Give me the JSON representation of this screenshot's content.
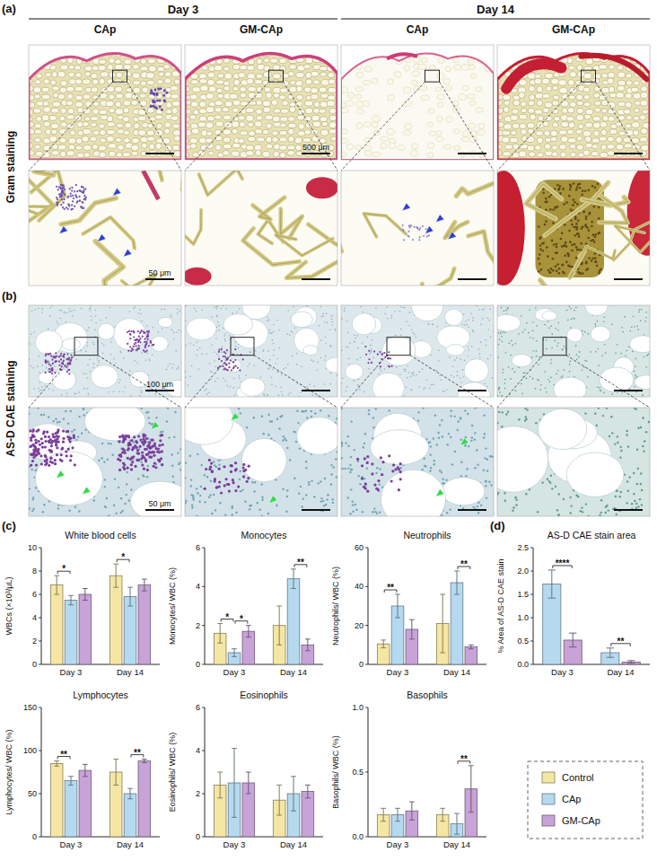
{
  "figure": {
    "panel_labels": [
      "(a)",
      "(b)",
      "(c)",
      "(d)"
    ],
    "days": [
      "Day 3",
      "Day 14"
    ],
    "groups": [
      "CAp",
      "GM-CAp"
    ],
    "rows": [
      "Gram staining",
      "AS-D CAE staining"
    ],
    "scale_bars": [
      "500 μm",
      "50 μm",
      "100 μm",
      "50 μm"
    ]
  },
  "chart_data": [
    {
      "type": "bar",
      "title": "White blood cells",
      "ylabel": "WBCs (×10³/μL)",
      "categories": [
        "Day 3",
        "Day 14"
      ],
      "series": [
        {
          "name": "Control",
          "color": "#f5e6a3",
          "values": [
            6.8,
            7.6
          ],
          "errors": [
            0.8,
            1.0
          ]
        },
        {
          "name": "CAp",
          "color": "#b5daf0",
          "values": [
            5.5,
            5.8
          ],
          "errors": [
            0.4,
            0.8
          ]
        },
        {
          "name": "GM-CAp",
          "color": "#c8a3d8",
          "values": [
            6.0,
            6.8
          ],
          "errors": [
            0.5,
            0.5
          ]
        }
      ],
      "ylim": [
        0,
        10
      ],
      "yticks": [
        0,
        2,
        4,
        6,
        8,
        10
      ],
      "annotations": [
        {
          "text": "*",
          "category": 0,
          "series": [
            0,
            1
          ]
        },
        {
          "text": "*",
          "category": 1,
          "series": [
            0,
            1
          ]
        }
      ]
    },
    {
      "type": "bar",
      "title": "Monocytes",
      "ylabel": "Monocytes/ WBC (%)",
      "categories": [
        "Day 3",
        "Day 14"
      ],
      "series": [
        {
          "name": "Control",
          "color": "#f5e6a3",
          "values": [
            1.6,
            2.0
          ],
          "errors": [
            0.5,
            1.0
          ]
        },
        {
          "name": "CAp",
          "color": "#b5daf0",
          "values": [
            0.6,
            4.4
          ],
          "errors": [
            0.2,
            0.5
          ]
        },
        {
          "name": "GM-CAp",
          "color": "#c8a3d8",
          "values": [
            1.7,
            1.0
          ],
          "errors": [
            0.3,
            0.3
          ]
        }
      ],
      "ylim": [
        0,
        6
      ],
      "yticks": [
        0,
        2,
        4,
        6
      ],
      "annotations": [
        {
          "text": "*",
          "category": 0,
          "series": [
            0,
            1
          ]
        },
        {
          "text": "*",
          "category": 0,
          "series": [
            1,
            2
          ]
        },
        {
          "text": "**",
          "category": 1,
          "series": [
            1,
            2
          ]
        }
      ]
    },
    {
      "type": "bar",
      "title": "Neutrophils",
      "ylabel": "Neutrophils/ WBC (%)",
      "categories": [
        "Day 3",
        "Day 14"
      ],
      "series": [
        {
          "name": "Control",
          "color": "#f5e6a3",
          "values": [
            10.5,
            21
          ],
          "errors": [
            2,
            15
          ]
        },
        {
          "name": "CAp",
          "color": "#b5daf0",
          "values": [
            30,
            42
          ],
          "errors": [
            6,
            6
          ]
        },
        {
          "name": "GM-CAp",
          "color": "#c8a3d8",
          "values": [
            18,
            9
          ],
          "errors": [
            5,
            1
          ]
        }
      ],
      "ylim": [
        0,
        60
      ],
      "yticks": [
        0,
        20,
        40,
        60
      ],
      "annotations": [
        {
          "text": "**",
          "category": 0,
          "series": [
            0,
            1
          ]
        },
        {
          "text": "**",
          "category": 1,
          "series": [
            1,
            2
          ]
        }
      ]
    },
    {
      "type": "bar",
      "title": "AS-D CAE stain area",
      "ylabel": "% Area of AS-D CAE stain",
      "categories": [
        "Day 3",
        "Day 14"
      ],
      "series": [
        {
          "name": "CAp",
          "color": "#b5daf0",
          "values": [
            1.72,
            0.25
          ],
          "errors": [
            0.3,
            0.1
          ]
        },
        {
          "name": "GM-CAp",
          "color": "#c8a3d8",
          "values": [
            0.52,
            0.05
          ],
          "errors": [
            0.15,
            0.03
          ]
        }
      ],
      "ylim": [
        0,
        2.5
      ],
      "yticks": [
        {
          "value": 0,
          "label": "0.0"
        },
        0.5,
        {
          "value": 1,
          "label": "1.0"
        },
        1.5,
        {
          "value": 2,
          "label": "2.0"
        },
        2.5
      ],
      "annotations": [
        {
          "text": "****",
          "category": 0,
          "series": [
            0,
            1
          ]
        },
        {
          "text": "**",
          "category": 1,
          "series": [
            0,
            1
          ]
        }
      ]
    },
    {
      "type": "bar",
      "title": "Lymphocytes",
      "ylabel": "Lymphocytes/ WBC (%)",
      "categories": [
        "Day 3",
        "Day 14"
      ],
      "series": [
        {
          "name": "Control",
          "color": "#f5e6a3",
          "values": [
            85,
            75
          ],
          "errors": [
            3,
            15
          ]
        },
        {
          "name": "CAp",
          "color": "#b5daf0",
          "values": [
            65,
            50
          ],
          "errors": [
            5,
            6
          ]
        },
        {
          "name": "GM-CAp",
          "color": "#c8a3d8",
          "values": [
            77,
            88
          ],
          "errors": [
            7,
            2
          ]
        }
      ],
      "ylim": [
        0,
        150
      ],
      "yticks": [
        0,
        50,
        100,
        150
      ],
      "annotations": [
        {
          "text": "**",
          "category": 0,
          "series": [
            0,
            1
          ]
        },
        {
          "text": "**",
          "category": 1,
          "series": [
            1,
            2
          ]
        }
      ]
    },
    {
      "type": "bar",
      "title": "Eosinophils",
      "ylabel": "Eosinophils/ WBC (%)",
      "categories": [
        "Day 3",
        "Day 14"
      ],
      "series": [
        {
          "name": "Control",
          "color": "#f5e6a3",
          "values": [
            2.4,
            1.7
          ],
          "errors": [
            0.6,
            0.7
          ]
        },
        {
          "name": "CAp",
          "color": "#b5daf0",
          "values": [
            2.5,
            2.0
          ],
          "errors": [
            1.6,
            0.8
          ]
        },
        {
          "name": "GM-CAp",
          "color": "#c8a3d8",
          "values": [
            2.5,
            2.1
          ],
          "errors": [
            0.5,
            0.3
          ]
        }
      ],
      "ylim": [
        0,
        6
      ],
      "yticks": [
        0,
        2,
        4,
        6
      ],
      "annotations": []
    },
    {
      "type": "bar",
      "title": "Basophils",
      "ylabel": "Basophils/ WBC (%)",
      "categories": [
        "Day 3",
        "Day 14"
      ],
      "series": [
        {
          "name": "Control",
          "color": "#f5e6a3",
          "values": [
            0.17,
            0.17
          ],
          "errors": [
            0.05,
            0.05
          ]
        },
        {
          "name": "CAp",
          "color": "#b5daf0",
          "values": [
            0.17,
            0.1
          ],
          "errors": [
            0.05,
            0.08
          ]
        },
        {
          "name": "GM-CAp",
          "color": "#c8a3d8",
          "values": [
            0.2,
            0.37
          ],
          "errors": [
            0.07,
            0.18
          ]
        }
      ],
      "ylim": [
        0,
        1
      ],
      "yticks": [
        {
          "value": 0,
          "label": "0.0"
        },
        0.5,
        {
          "value": 1,
          "label": "1.0"
        }
      ],
      "annotations": [
        {
          "text": "**",
          "category": 1,
          "series": [
            1,
            2
          ]
        }
      ]
    }
  ]
}
